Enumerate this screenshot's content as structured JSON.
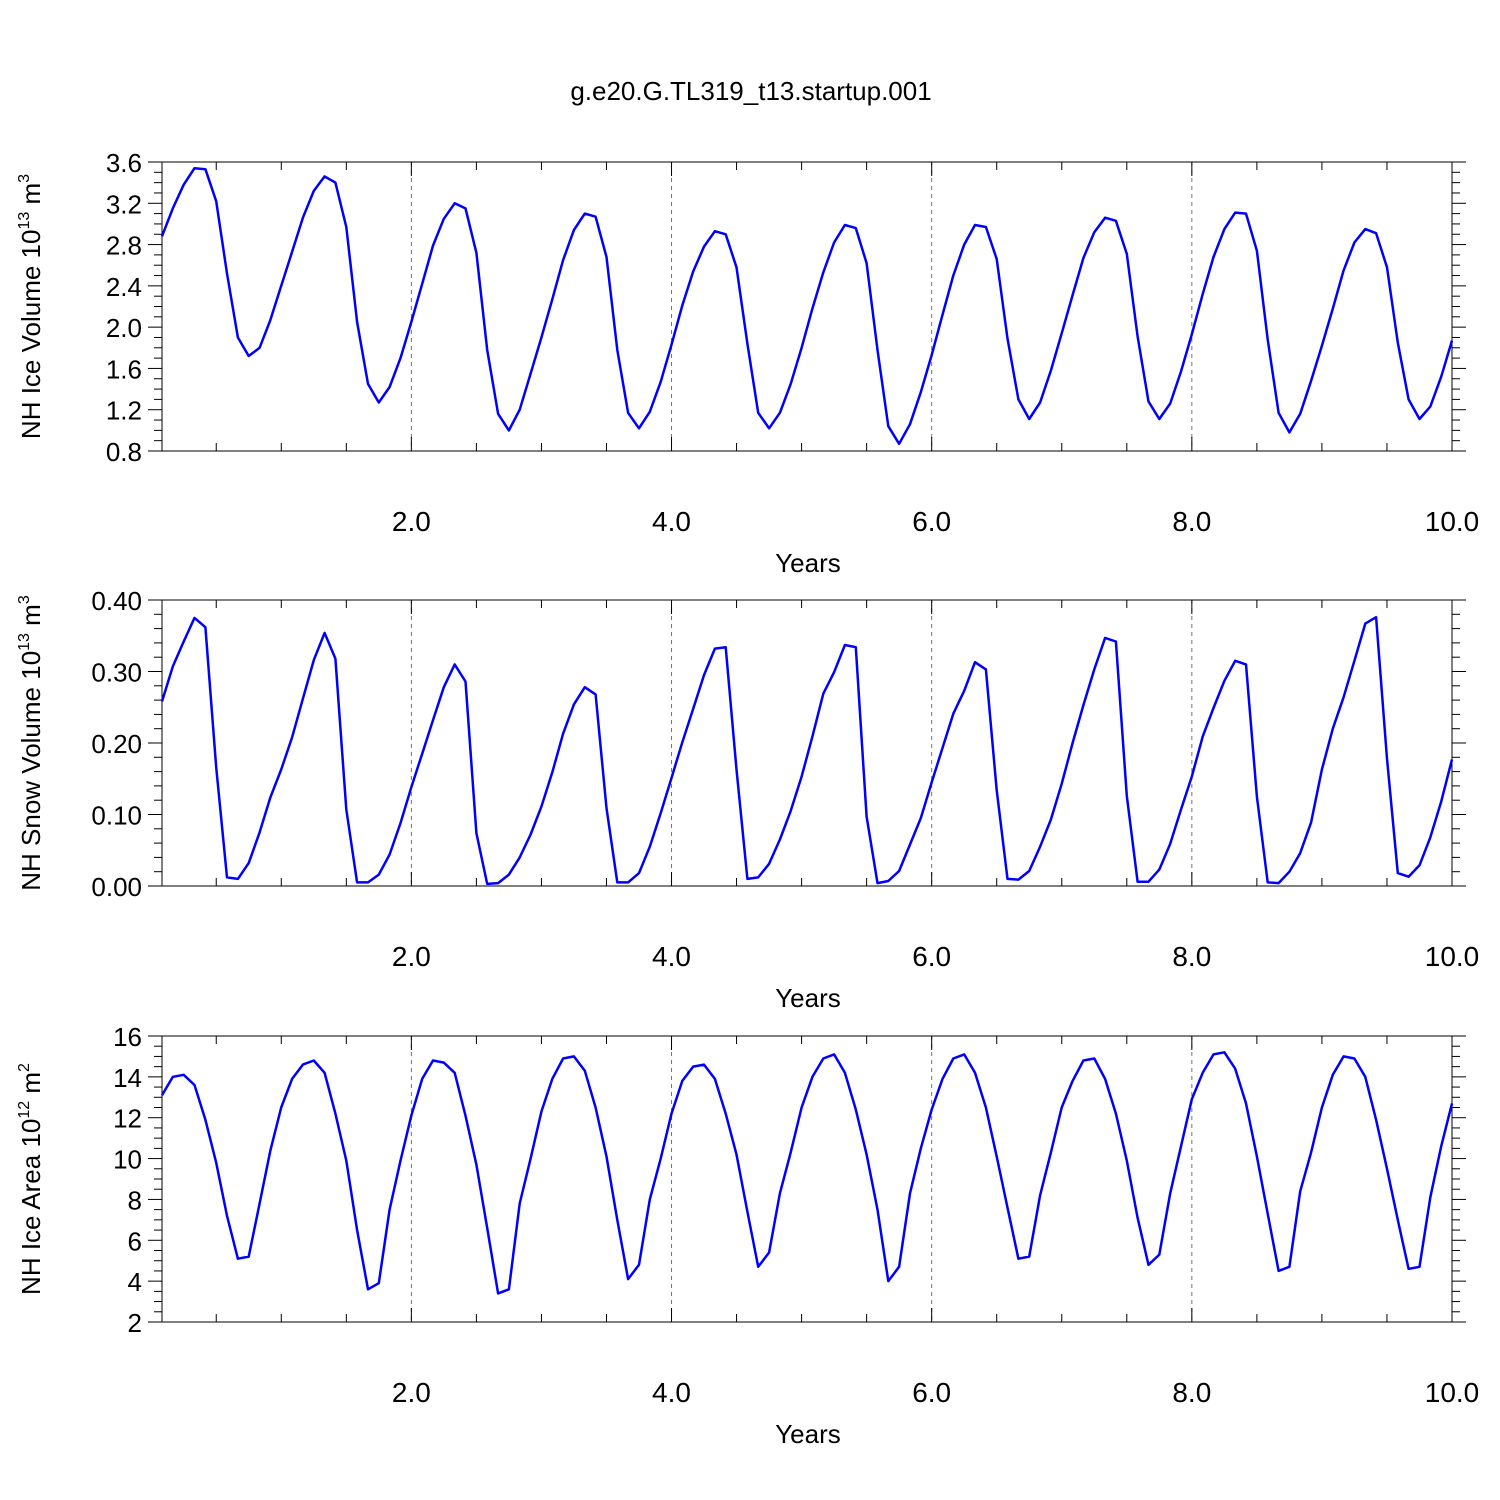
{
  "title": "g.e20.G.TL319_t13.startup.001",
  "chart_data": [
    {
      "type": "line",
      "ylabel": "NH Ice Volume 10",
      "ylabel_exp": "13",
      "ylabel_unit": " m",
      "ylabel_unit_exp": "3",
      "xlabel": "Years",
      "xlim": [
        0.083,
        10.0
      ],
      "ylim": [
        0.8,
        3.6
      ],
      "yticks": [
        "0.8",
        "1.2",
        "1.6",
        "2.0",
        "2.4",
        "2.8",
        "3.2",
        "3.6"
      ],
      "ytick_values": [
        0.8,
        1.2,
        1.6,
        2.0,
        2.4,
        2.8,
        3.2,
        3.6
      ],
      "xticks": [
        "2.0",
        "4.0",
        "6.0",
        "8.0",
        "10.0"
      ],
      "xtick_values": [
        2,
        4,
        6,
        8,
        10
      ],
      "grid": "vertical dashed at major x ticks",
      "color": "#0000ff",
      "values": [
        2.88,
        3.15,
        3.38,
        3.54,
        3.53,
        3.22,
        2.52,
        1.9,
        1.72,
        1.8,
        2.07,
        2.4,
        2.73,
        3.06,
        3.32,
        3.46,
        3.4,
        2.97,
        2.05,
        1.45,
        1.27,
        1.42,
        1.7,
        2.05,
        2.42,
        2.79,
        3.05,
        3.2,
        3.15,
        2.72,
        1.78,
        1.16,
        1.0,
        1.2,
        1.55,
        1.9,
        2.27,
        2.65,
        2.94,
        3.1,
        3.07,
        2.68,
        1.78,
        1.17,
        1.02,
        1.18,
        1.47,
        1.83,
        2.21,
        2.54,
        2.78,
        2.93,
        2.9,
        2.58,
        1.84,
        1.17,
        1.02,
        1.17,
        1.45,
        1.8,
        2.18,
        2.53,
        2.82,
        2.99,
        2.96,
        2.62,
        1.78,
        1.04,
        0.87,
        1.06,
        1.37,
        1.73,
        2.12,
        2.5,
        2.8,
        2.99,
        2.97,
        2.66,
        1.89,
        1.3,
        1.11,
        1.27,
        1.58,
        1.94,
        2.31,
        2.67,
        2.92,
        3.06,
        3.03,
        2.71,
        1.91,
        1.28,
        1.11,
        1.26,
        1.57,
        1.93,
        2.32,
        2.68,
        2.95,
        3.11,
        3.1,
        2.74,
        1.88,
        1.17,
        0.98,
        1.16,
        1.48,
        1.82,
        2.18,
        2.55,
        2.82,
        2.95,
        2.91,
        2.58,
        1.85,
        1.3,
        1.11,
        1.23,
        1.52,
        1.87
      ]
    },
    {
      "type": "line",
      "ylabel": "NH Snow Volume 10",
      "ylabel_exp": "13",
      "ylabel_unit": " m",
      "ylabel_unit_exp": "3",
      "xlabel": "Years",
      "xlim": [
        0.083,
        10.0
      ],
      "ylim": [
        0.0,
        0.4
      ],
      "yticks": [
        "0.00",
        "0.10",
        "0.20",
        "0.30",
        "0.40"
      ],
      "ytick_values": [
        0.0,
        0.1,
        0.2,
        0.3,
        0.4
      ],
      "xticks": [
        "2.0",
        "4.0",
        "6.0",
        "8.0",
        "10.0"
      ],
      "xtick_values": [
        2,
        4,
        6,
        8,
        10
      ],
      "grid": "vertical dashed at major x ticks",
      "color": "#0000ff",
      "values": [
        0.258,
        0.307,
        0.342,
        0.375,
        0.362,
        0.166,
        0.012,
        0.01,
        0.032,
        0.075,
        0.124,
        0.163,
        0.208,
        0.262,
        0.316,
        0.354,
        0.318,
        0.107,
        0.005,
        0.005,
        0.016,
        0.044,
        0.088,
        0.138,
        0.185,
        0.232,
        0.278,
        0.31,
        0.286,
        0.074,
        0.003,
        0.004,
        0.016,
        0.04,
        0.072,
        0.111,
        0.159,
        0.213,
        0.254,
        0.278,
        0.268,
        0.109,
        0.005,
        0.005,
        0.018,
        0.055,
        0.102,
        0.151,
        0.201,
        0.248,
        0.295,
        0.332,
        0.334,
        0.163,
        0.01,
        0.012,
        0.031,
        0.065,
        0.105,
        0.153,
        0.209,
        0.269,
        0.299,
        0.337,
        0.334,
        0.097,
        0.004,
        0.007,
        0.021,
        0.058,
        0.095,
        0.145,
        0.193,
        0.241,
        0.273,
        0.313,
        0.303,
        0.134,
        0.01,
        0.009,
        0.021,
        0.055,
        0.093,
        0.143,
        0.2,
        0.253,
        0.303,
        0.347,
        0.342,
        0.126,
        0.006,
        0.006,
        0.023,
        0.059,
        0.107,
        0.153,
        0.209,
        0.249,
        0.287,
        0.315,
        0.31,
        0.125,
        0.005,
        0.004,
        0.02,
        0.046,
        0.089,
        0.163,
        0.22,
        0.264,
        0.315,
        0.367,
        0.376,
        0.178,
        0.018,
        0.013,
        0.029,
        0.068,
        0.118,
        0.177
      ]
    },
    {
      "type": "line",
      "ylabel": "NH Ice Area 10",
      "ylabel_exp": "12",
      "ylabel_unit": " m",
      "ylabel_unit_exp": "2",
      "xlabel": "Years",
      "xlim": [
        0.083,
        10.0
      ],
      "ylim": [
        2,
        16
      ],
      "yticks": [
        "2",
        "4",
        "6",
        "8",
        "10",
        "12",
        "14",
        "16"
      ],
      "ytick_values": [
        2,
        4,
        6,
        8,
        10,
        12,
        14,
        16
      ],
      "xticks": [
        "2.0",
        "4.0",
        "6.0",
        "8.0",
        "10.0"
      ],
      "xtick_values": [
        2,
        4,
        6,
        8,
        10
      ],
      "grid": "vertical dashed at major x ticks",
      "color": "#0000ff",
      "values": [
        13.1,
        14.0,
        14.1,
        13.6,
        11.9,
        9.8,
        7.2,
        5.1,
        5.2,
        7.8,
        10.4,
        12.5,
        13.9,
        14.6,
        14.8,
        14.2,
        12.2,
        9.9,
        6.5,
        3.6,
        3.9,
        7.5,
        9.9,
        12.1,
        13.9,
        14.8,
        14.7,
        14.2,
        12.1,
        9.7,
        6.6,
        3.4,
        3.6,
        7.8,
        10.0,
        12.3,
        13.9,
        14.9,
        15.0,
        14.3,
        12.5,
        10.1,
        7.0,
        4.1,
        4.8,
        8.0,
        10.0,
        12.2,
        13.8,
        14.5,
        14.6,
        13.9,
        12.2,
        10.2,
        7.4,
        4.7,
        5.4,
        8.3,
        10.3,
        12.5,
        14.0,
        14.9,
        15.1,
        14.2,
        12.4,
        10.2,
        7.5,
        4.0,
        4.7,
        8.3,
        10.5,
        12.4,
        13.9,
        14.9,
        15.1,
        14.2,
        12.5,
        10.1,
        7.6,
        5.1,
        5.2,
        8.2,
        10.3,
        12.5,
        13.8,
        14.8,
        14.9,
        13.9,
        12.2,
        9.9,
        7.1,
        4.8,
        5.3,
        8.3,
        10.6,
        12.9,
        14.2,
        15.1,
        15.2,
        14.4,
        12.7,
        10.1,
        7.3,
        4.5,
        4.7,
        8.4,
        10.3,
        12.5,
        14.1,
        15.0,
        14.9,
        14.0,
        11.9,
        9.5,
        7.0,
        4.6,
        4.7,
        8.1,
        10.6,
        12.7
      ]
    }
  ]
}
